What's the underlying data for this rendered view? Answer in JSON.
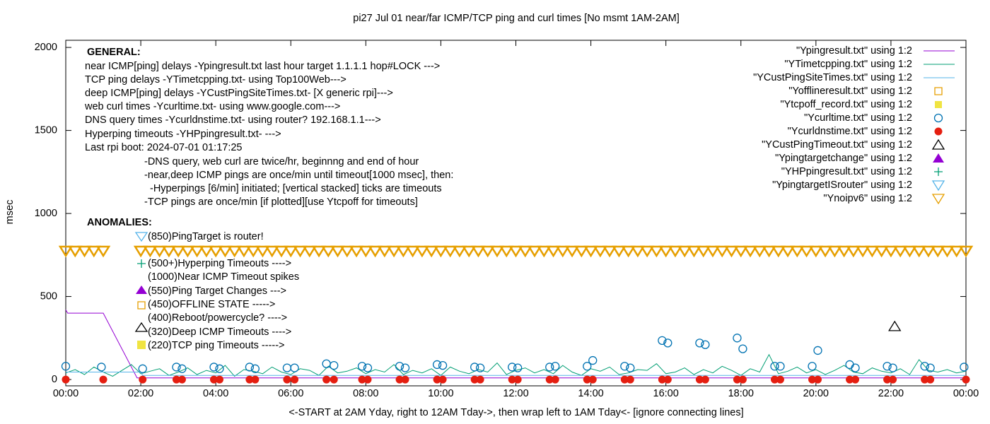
{
  "chart_data": {
    "type": "line",
    "title": "pi27 Jul 01  near/far ICMP/TCP ping and curl times [No msmt 1AM-2AM]",
    "xlabel": "<-START at 2AM Yday, right to 12AM Tday->, then wrap left to 1AM Tday<- [ignore connecting lines]",
    "ylabel": "msec",
    "xlim": [
      0,
      24
    ],
    "ylim": [
      -38,
      2043
    ],
    "xticks": [
      {
        "value": 0,
        "label": "00:00"
      },
      {
        "value": 2,
        "label": "02:00"
      },
      {
        "value": 4,
        "label": "04:00"
      },
      {
        "value": 6,
        "label": "06:00"
      },
      {
        "value": 8,
        "label": "08:00"
      },
      {
        "value": 10,
        "label": "10:00"
      },
      {
        "value": 12,
        "label": "12:00"
      },
      {
        "value": 14,
        "label": "14:00"
      },
      {
        "value": 16,
        "label": "16:00"
      },
      {
        "value": 18,
        "label": "18:00"
      },
      {
        "value": 20,
        "label": "20:00"
      },
      {
        "value": 22,
        "label": "22:00"
      },
      {
        "value": 24,
        "label": "00:00"
      }
    ],
    "yticks": [
      0,
      500,
      1000,
      1500,
      2000
    ],
    "grid": false,
    "legend": "top-right",
    "annotations": [
      "GENERAL:",
      "near ICMP[ping] delays -Ypingresult.txt last hour target 1.1.1.1 hop#LOCK --->",
      "TCP ping delays -YTimetcpping.txt- using Top100Web--->",
      "deep ICMP[ping] delays -YCustPingSiteTimes.txt- [X generic rpi]--->",
      "web curl times -Ycurltime.txt- using www.google.com--->",
      "DNS query times -Ycurldnstime.txt- using router? 192.168.1.1--->",
      "Hyperping timeouts -YHPpingresult.txt- --->",
      "Last rpi boot: 2024-07-01 01:17:25",
      "-DNS query, web curl are twice/hr, beginnng and end of hour",
      "-near,deep ICMP pings are once/min until timeout[1000 msec], then:",
      "-Hyperpings [6/min] initiated; [vertical stacked] ticks are timeouts",
      "-TCP pings are once/min [if plotted][use Ytcpoff for timeouts]",
      "ANOMALIES:",
      "(850)PingTarget is router!",
      "(500+)Hyperping Timeouts ---->",
      "(1000)Near ICMP Timeout spikes",
      "(550)Ping Target Changes --->",
      "(450)OFFLINE STATE ----->",
      "(400)Reboot/powercycle? ---->",
      "(320)Deep ICMP Timeouts ---->",
      "(220)TCP ping Timeouts ----->"
    ],
    "series": [
      {
        "name": "\"Ypingresult.txt\" using 1:2",
        "color": "#9400d3",
        "marker": "line",
        "x": [
          0,
          0.05,
          1,
          1.9,
          24
        ],
        "values": [
          420,
          400,
          400,
          10,
          10
        ]
      },
      {
        "name": "\"YTimetcpping.txt\" using 1:2",
        "color": "#009e73",
        "marker": "line",
        "x": [
          0,
          0.25,
          0.5,
          0.75,
          1,
          1.25,
          1.5,
          1.75,
          2,
          2.25,
          2.5,
          2.75,
          3,
          3.25,
          3.5,
          3.75,
          4,
          4.25,
          4.5,
          4.75,
          5,
          5.25,
          5.5,
          5.75,
          6,
          6.25,
          6.5,
          6.75,
          7,
          7.25,
          7.5,
          7.75,
          8,
          8.25,
          8.5,
          8.75,
          9,
          9.25,
          9.5,
          9.75,
          10,
          10.25,
          10.5,
          10.75,
          11,
          11.25,
          11.5,
          11.75,
          12,
          12.25,
          12.5,
          12.75,
          13,
          13.25,
          13.5,
          13.75,
          14,
          14.25,
          14.5,
          14.75,
          15,
          15.25,
          15.5,
          15.75,
          16,
          16.25,
          16.5,
          16.75,
          17,
          17.25,
          17.5,
          17.75,
          18,
          18.25,
          18.5,
          18.75,
          19,
          19.25,
          19.5,
          19.75,
          20,
          20.25,
          20.5,
          20.75,
          21,
          21.25,
          21.5,
          21.75,
          22,
          22.25,
          22.5,
          22.75,
          23,
          23.25,
          23.5,
          23.75,
          24
        ],
        "values": [
          40,
          60,
          30,
          75,
          45,
          20,
          55,
          90,
          35,
          50,
          65,
          25,
          45,
          70,
          30,
          55,
          40,
          85,
          20,
          60,
          50,
          35,
          75,
          45,
          30,
          65,
          55,
          25,
          80,
          40,
          50,
          70,
          35,
          60,
          45,
          90,
          30,
          55,
          40,
          65,
          25,
          75,
          50,
          35,
          60,
          45,
          100,
          30,
          55,
          70,
          40,
          60,
          35,
          85,
          45,
          25,
          65,
          50,
          75,
          30,
          40,
          60,
          55,
          95,
          35,
          45,
          70,
          30,
          60,
          40,
          80,
          55,
          25,
          65,
          45,
          150,
          35,
          50,
          75,
          40,
          60,
          30,
          55,
          85,
          45,
          35,
          70,
          50,
          40,
          65,
          30,
          120,
          55,
          45,
          60,
          40,
          50
        ]
      },
      {
        "name": "\"YCustPingSiteTimes.txt\" using 1:2",
        "color": "#56b4e9",
        "marker": "line",
        "x": [
          0,
          2,
          2.05,
          24
        ],
        "values": [
          45,
          45,
          25,
          25
        ]
      },
      {
        "name": "\"Yofflineresult.txt\" using 1:2",
        "color": "#e69f00",
        "marker": "square-open",
        "x": [],
        "values": []
      },
      {
        "name": "\"Ytcpoff_record.txt\" using 1:2",
        "color": "#f0e442",
        "marker": "square-filled",
        "x": [],
        "values": []
      },
      {
        "name": "\"Ycurltime.txt\" using 1:2",
        "color": "#0072b2",
        "marker": "circle-open",
        "x": [
          0,
          0.95,
          2.05,
          2.95,
          3.1,
          3.95,
          4.1,
          4.9,
          5.05,
          5.9,
          6.1,
          6.95,
          7.15,
          7.9,
          8.05,
          8.9,
          9.05,
          9.9,
          10.05,
          10.9,
          11.05,
          11.9,
          12.05,
          12.9,
          13.05,
          13.9,
          14.05,
          14.9,
          15.05,
          15.9,
          16.05,
          16.9,
          17.05,
          17.9,
          18.05,
          18.9,
          19.05,
          19.9,
          20.05,
          20.9,
          21.05,
          21.9,
          22.05,
          22.9,
          23.05,
          23.95
        ],
        "values": [
          80,
          75,
          65,
          75,
          65,
          75,
          65,
          75,
          65,
          70,
          70,
          95,
          85,
          80,
          70,
          80,
          70,
          90,
          85,
          75,
          70,
          75,
          70,
          75,
          80,
          80,
          115,
          80,
          70,
          235,
          220,
          220,
          210,
          250,
          185,
          80,
          80,
          80,
          175,
          90,
          70,
          80,
          70,
          80,
          70,
          75
        ]
      },
      {
        "name": "\"Ycurldnstime.txt\" using 1:2",
        "color": "#e51e10",
        "marker": "circle-filled",
        "x": [
          0,
          1,
          2.05,
          2.95,
          3.1,
          3.95,
          4.1,
          4.9,
          5.05,
          5.9,
          6.1,
          6.95,
          7.15,
          7.9,
          8.05,
          8.9,
          9.05,
          9.9,
          10.05,
          10.9,
          11.05,
          11.9,
          12.05,
          12.9,
          13.05,
          13.9,
          14.05,
          14.9,
          15.05,
          15.9,
          16.05,
          16.9,
          17.05,
          17.9,
          18.05,
          18.9,
          19.05,
          19.9,
          20.05,
          20.9,
          21.05,
          21.9,
          22.05,
          22.9,
          23.05,
          24
        ],
        "values": [
          0,
          0,
          0,
          0,
          0,
          0,
          0,
          0,
          0,
          0,
          0,
          0,
          0,
          0,
          0,
          0,
          0,
          0,
          0,
          0,
          0,
          0,
          0,
          0,
          0,
          0,
          0,
          0,
          0,
          0,
          0,
          0,
          0,
          0,
          0,
          0,
          0,
          0,
          0,
          0,
          0,
          0,
          0,
          0,
          0,
          0
        ]
      },
      {
        "name": "\"YCustPingTimeout.txt\" using 1:2",
        "color": "#000000",
        "marker": "triangle-open",
        "x": [
          22.1
        ],
        "values": [
          320
        ]
      },
      {
        "name": "\"Ypingtargetchange\" using 1:2",
        "color": "#9400d3",
        "marker": "triangle-filled",
        "x": [],
        "values": []
      },
      {
        "name": "\"YHPpingresult.txt\" using 1:2",
        "color": "#009e73",
        "marker": "plus",
        "x": [],
        "values": []
      },
      {
        "name": "\"YpingtargetISrouter\" using 1:2",
        "color": "#56b4e9",
        "marker": "triangle-down-open",
        "x": [],
        "values": []
      },
      {
        "name": "\"Ynoipv6\" using 1:2",
        "color": "#e69f00",
        "marker": "triangle-down-open",
        "x": [
          0,
          0.25,
          0.5,
          0.75,
          1,
          2,
          2.25,
          2.5,
          2.75,
          3,
          3.25,
          3.5,
          3.75,
          4,
          4.25,
          4.5,
          4.75,
          5,
          5.25,
          5.5,
          5.75,
          6,
          6.25,
          6.5,
          6.75,
          7,
          7.25,
          7.5,
          7.75,
          8,
          8.25,
          8.5,
          8.75,
          9,
          9.25,
          9.5,
          9.75,
          10,
          10.25,
          10.5,
          10.75,
          11,
          11.25,
          11.5,
          11.75,
          12,
          12.25,
          12.5,
          12.75,
          13,
          13.25,
          13.5,
          13.75,
          14,
          14.25,
          14.5,
          14.75,
          15,
          15.25,
          15.5,
          15.75,
          16,
          16.25,
          16.5,
          16.75,
          17,
          17.25,
          17.5,
          17.75,
          18,
          18.25,
          18.5,
          18.75,
          19,
          19.25,
          19.5,
          19.75,
          20,
          20.25,
          20.5,
          20.75,
          21,
          21.25,
          21.5,
          21.75,
          22,
          22.25,
          22.5,
          22.75,
          23,
          23.25,
          23.5,
          23.75,
          24
        ],
        "values": [
          775,
          775,
          775,
          775,
          775,
          775,
          775,
          775,
          775,
          775,
          775,
          775,
          775,
          775,
          775,
          775,
          775,
          775,
          775,
          775,
          775,
          775,
          775,
          775,
          775,
          775,
          775,
          775,
          775,
          775,
          775,
          775,
          775,
          775,
          775,
          775,
          775,
          775,
          775,
          775,
          775,
          775,
          775,
          775,
          775,
          775,
          775,
          775,
          775,
          775,
          775,
          775,
          775,
          775,
          775,
          775,
          775,
          775,
          775,
          775,
          775,
          775,
          775,
          775,
          775,
          775,
          775,
          775,
          775,
          775,
          775,
          775,
          775,
          775,
          775,
          775,
          775,
          775,
          775,
          775,
          775,
          775,
          775,
          775,
          775,
          775,
          775,
          775,
          775,
          775,
          775,
          775,
          775,
          775
        ]
      }
    ]
  }
}
